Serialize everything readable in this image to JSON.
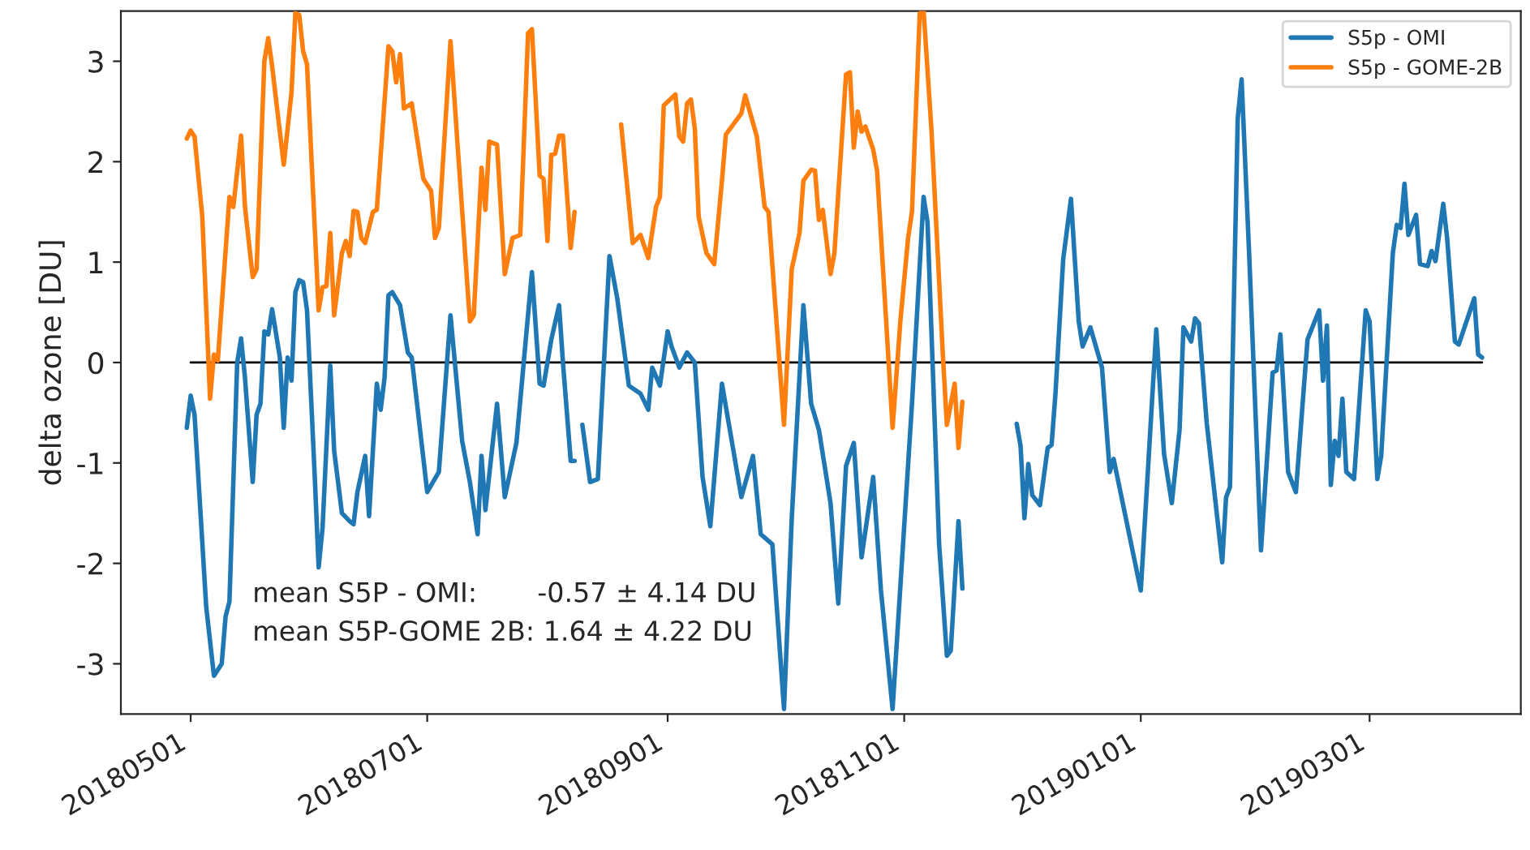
{
  "chart_data": {
    "type": "line",
    "ylabel": "delta ozone [DU]",
    "xlim": [
      "2018-04-13",
      "2019-04-09"
    ],
    "ylim": [
      -3.5,
      3.5
    ],
    "yticks": [
      -3,
      -2,
      -1,
      0,
      1,
      2,
      3
    ],
    "xticks": [
      {
        "value": "2018-05-01",
        "label": "20180501"
      },
      {
        "value": "2018-07-01",
        "label": "20180701"
      },
      {
        "value": "2018-09-01",
        "label": "20180901"
      },
      {
        "value": "2018-11-01",
        "label": "20181101"
      },
      {
        "value": "2019-01-01",
        "label": "20190101"
      },
      {
        "value": "2019-03-01",
        "label": "20190301"
      }
    ],
    "grid": false,
    "legend": "top right",
    "marker": "none",
    "line_style": "solid",
    "annotations": [
      "mean S5P - OMI:       -0.57 ± 4.14 DU",
      "mean S5P-GOME 2B: 1.64 ± 4.22 DU"
    ],
    "series": [
      {
        "name": "S5p - OMI",
        "color": "#1f77b4",
        "x": [
          "2018-04-30",
          "2018-05-01",
          "2018-05-02",
          "2018-05-05",
          "2018-05-07",
          "2018-05-09",
          "2018-05-10",
          "2018-05-11",
          "2018-05-13",
          "2018-05-14",
          "2018-05-15",
          "2018-05-17",
          "2018-05-18",
          "2018-05-19",
          "2018-05-20",
          "2018-05-21",
          "2018-05-22",
          "2018-05-24",
          "2018-05-25",
          "2018-05-26",
          "2018-05-27",
          "2018-05-28",
          "2018-05-29",
          "2018-05-30",
          "2018-05-31",
          "2018-06-02",
          "2018-06-03",
          "2018-06-04",
          "2018-06-06",
          "2018-06-07",
          "2018-06-09",
          "2018-06-11",
          "2018-06-12",
          "2018-06-13",
          "2018-06-15",
          "2018-06-16",
          "2018-06-18",
          "2018-06-19",
          "2018-06-20",
          "2018-06-21",
          "2018-06-22",
          "2018-06-24",
          "2018-06-26",
          "2018-06-27",
          "2018-07-01",
          "2018-07-04",
          "2018-07-07",
          "2018-07-10",
          "2018-07-12",
          "2018-07-14",
          "2018-07-15",
          "2018-07-16",
          "2018-07-19",
          "2018-07-21",
          "2018-07-24",
          "2018-07-28",
          "2018-07-30",
          "2018-07-31",
          "2018-08-02",
          "2018-08-04",
          "2018-08-05",
          "2018-08-07",
          "2018-08-08",
          "2018-08-09",
          "2018-08-10",
          "2018-08-12",
          "2018-08-14",
          "2018-08-17",
          "2018-08-19",
          "2018-08-22",
          "2018-08-25",
          "2018-08-27",
          "2018-08-28",
          "2018-08-30",
          "2018-09-01",
          "2018-09-02",
          "2018-09-04",
          "2018-09-06",
          "2018-09-08",
          "2018-09-10",
          "2018-09-12",
          "2018-09-15",
          "2018-09-20",
          "2018-09-23",
          "2018-09-25",
          "2018-09-28",
          "2018-10-01",
          "2018-10-03",
          "2018-10-06",
          "2018-10-08",
          "2018-10-10",
          "2018-10-13",
          "2018-10-15",
          "2018-10-17",
          "2018-10-19",
          "2018-10-21",
          "2018-10-24",
          "2018-10-26",
          "2018-10-29",
          "2018-11-03",
          "2018-11-06",
          "2018-11-07",
          "2018-11-10",
          "2018-11-12",
          "2018-11-13",
          "2018-11-15",
          "2018-11-16",
          "2018-11-17",
          "2018-11-30",
          "2018-12-01",
          "2018-12-02",
          "2018-12-03",
          "2018-12-04",
          "2018-12-06",
          "2018-12-08",
          "2018-12-09",
          "2018-12-10",
          "2018-12-12",
          "2018-12-14",
          "2018-12-16",
          "2018-12-17",
          "2018-12-19",
          "2018-12-22",
          "2018-12-24",
          "2018-12-25",
          "2019-01-01",
          "2019-01-05",
          "2019-01-07",
          "2019-01-09",
          "2019-01-11",
          "2019-01-12",
          "2019-01-14",
          "2019-01-15",
          "2019-01-16",
          "2019-01-18",
          "2019-01-22",
          "2019-01-23",
          "2019-01-24",
          "2019-01-26",
          "2019-01-27",
          "2019-01-29",
          "2019-02-01",
          "2019-02-04",
          "2019-02-05",
          "2019-02-06",
          "2019-02-08",
          "2019-02-10",
          "2019-02-13",
          "2019-02-16",
          "2019-02-17",
          "2019-02-18",
          "2019-02-19",
          "2019-02-20",
          "2019-02-21",
          "2019-02-22",
          "2019-02-23",
          "2019-02-25",
          "2019-02-28",
          "2019-03-01",
          "2019-03-03",
          "2019-03-04",
          "2019-03-07",
          "2019-03-08",
          "2019-03-09",
          "2019-03-10",
          "2019-03-11",
          "2019-03-13",
          "2019-03-14",
          "2019-03-16",
          "2019-03-17",
          "2019-03-18",
          "2019-03-20",
          "2019-03-21",
          "2019-03-23",
          "2019-03-24",
          "2019-03-28",
          "2019-03-29",
          "2019-03-30"
        ],
        "values": [
          -0.65,
          -0.33,
          -0.52,
          -2.43,
          -3.12,
          -3.0,
          -2.53,
          -2.38,
          0.0,
          0.24,
          -0.15,
          -1.19,
          -0.52,
          -0.41,
          0.31,
          0.28,
          0.53,
          0.05,
          -0.65,
          0.05,
          -0.18,
          0.7,
          0.82,
          0.8,
          0.52,
          -1.14,
          -2.04,
          -1.65,
          -0.03,
          -0.88,
          -1.5,
          -1.58,
          -1.61,
          -1.29,
          -0.93,
          -1.53,
          -0.21,
          -0.47,
          -0.15,
          0.67,
          0.7,
          0.57,
          0.1,
          0.05,
          -1.29,
          -1.09,
          0.47,
          -0.78,
          -1.19,
          -1.71,
          -0.93,
          -1.47,
          -0.41,
          -1.34,
          -0.8,
          0.9,
          -0.21,
          -0.23,
          0.23,
          0.57,
          0.0,
          -0.98,
          -0.98,
          null,
          -0.62,
          -1.19,
          -1.16,
          1.06,
          0.64,
          -0.23,
          -0.31,
          -0.47,
          -0.05,
          -0.23,
          0.31,
          0.16,
          -0.05,
          0.1,
          0.0,
          -1.14,
          -1.63,
          -0.21,
          -1.34,
          -0.93,
          -1.71,
          -1.81,
          -3.45,
          -1.55,
          0.57,
          -0.41,
          -0.67,
          -1.4,
          -2.4,
          -1.03,
          -0.8,
          -1.94,
          -1.14,
          -2.27,
          -3.45,
          -0.41,
          1.65,
          1.4,
          -1.81,
          -2.92,
          -2.87,
          -1.58,
          -2.25,
          null,
          -0.61,
          -0.83,
          -1.55,
          -1.01,
          -1.32,
          -1.42,
          -0.85,
          -0.82,
          -0.31,
          1.03,
          1.63,
          0.41,
          0.16,
          0.35,
          -0.05,
          -1.09,
          -0.96,
          -2.27,
          0.33,
          -0.91,
          -1.4,
          -0.67,
          0.35,
          0.21,
          0.44,
          0.39,
          -0.6,
          -1.99,
          -1.34,
          -1.24,
          2.43,
          2.82,
          1.03,
          -1.87,
          -0.1,
          -0.08,
          0.28,
          -1.09,
          -1.29,
          0.23,
          0.52,
          -0.18,
          0.37,
          -1.22,
          -0.78,
          -0.93,
          -0.36,
          -1.09,
          -1.16,
          0.52,
          0.41,
          -1.16,
          -0.93,
          1.09,
          1.37,
          1.34,
          1.78,
          1.27,
          1.47,
          0.98,
          0.96,
          1.11,
          1.01,
          1.58,
          1.24,
          0.21,
          0.18,
          0.64,
          0.08,
          0.05
        ]
      },
      {
        "name": "S5p - GOME-2B",
        "color": "#ff7f0e",
        "x": [
          "2018-04-30",
          "2018-05-01",
          "2018-05-02",
          "2018-05-04",
          "2018-05-06",
          "2018-05-07",
          "2018-05-08",
          "2018-05-11",
          "2018-05-12",
          "2018-05-14",
          "2018-05-15",
          "2018-05-17",
          "2018-05-18",
          "2018-05-20",
          "2018-05-21",
          "2018-05-22",
          "2018-05-25",
          "2018-05-27",
          "2018-05-28",
          "2018-05-29",
          "2018-05-30",
          "2018-05-31",
          "2018-06-03",
          "2018-06-04",
          "2018-06-05",
          "2018-06-06",
          "2018-06-07",
          "2018-06-09",
          "2018-06-10",
          "2018-06-11",
          "2018-06-12",
          "2018-06-13",
          "2018-06-14",
          "2018-06-15",
          "2018-06-17",
          "2018-06-18",
          "2018-06-21",
          "2018-06-22",
          "2018-06-23",
          "2018-06-24",
          "2018-06-25",
          "2018-06-27",
          "2018-06-30",
          "2018-07-02",
          "2018-07-03",
          "2018-07-04",
          "2018-07-07",
          "2018-07-09",
          "2018-07-12",
          "2018-07-13",
          "2018-07-15",
          "2018-07-16",
          "2018-07-17",
          "2018-07-19",
          "2018-07-21",
          "2018-07-23",
          "2018-07-25",
          "2018-07-27",
          "2018-07-28",
          "2018-07-30",
          "2018-07-31",
          "2018-08-01",
          "2018-08-02",
          "2018-08-03",
          "2018-08-04",
          "2018-08-05",
          "2018-08-07",
          "2018-08-08",
          "2018-08-09",
          "2018-08-20",
          "2018-08-23",
          "2018-08-25",
          "2018-08-27",
          "2018-08-29",
          "2018-08-30",
          "2018-08-31",
          "2018-09-03",
          "2018-09-04",
          "2018-09-05",
          "2018-09-06",
          "2018-09-07",
          "2018-09-08",
          "2018-09-09",
          "2018-09-11",
          "2018-09-13",
          "2018-09-15",
          "2018-09-16",
          "2018-09-20",
          "2018-09-21",
          "2018-09-24",
          "2018-09-26",
          "2018-09-27",
          "2018-10-01",
          "2018-10-03",
          "2018-10-05",
          "2018-10-06",
          "2018-10-08",
          "2018-10-09",
          "2018-10-10",
          "2018-10-11",
          "2018-10-13",
          "2018-10-14",
          "2018-10-17",
          "2018-10-18",
          "2018-10-19",
          "2018-10-20",
          "2018-10-21",
          "2018-10-22",
          "2018-10-24",
          "2018-10-25",
          "2018-10-29",
          "2018-10-31",
          "2018-11-02",
          "2018-11-03",
          "2018-11-05",
          "2018-11-06",
          "2018-11-08",
          "2018-11-11",
          "2018-11-12",
          "2018-11-14",
          "2018-11-15",
          "2018-11-16"
        ],
        "values": [
          2.23,
          2.31,
          2.25,
          1.45,
          -0.36,
          0.08,
          0.02,
          1.65,
          1.55,
          2.26,
          1.55,
          0.85,
          0.93,
          3.0,
          3.23,
          2.95,
          1.97,
          2.69,
          3.48,
          3.46,
          3.1,
          2.97,
          0.52,
          0.75,
          0.76,
          1.29,
          0.47,
          1.09,
          1.21,
          1.06,
          1.51,
          1.5,
          1.24,
          1.19,
          1.5,
          1.52,
          3.15,
          3.1,
          2.79,
          3.07,
          2.53,
          2.58,
          1.83,
          1.71,
          1.24,
          1.34,
          3.2,
          2.07,
          0.41,
          0.47,
          1.94,
          1.52,
          2.2,
          2.17,
          0.88,
          1.24,
          1.27,
          3.28,
          3.32,
          1.86,
          1.83,
          1.21,
          2.07,
          2.08,
          2.26,
          2.26,
          1.14,
          1.5,
          null,
          2.37,
          1.19,
          1.27,
          1.04,
          1.55,
          1.65,
          2.56,
          2.67,
          2.25,
          2.2,
          2.58,
          2.62,
          2.33,
          1.45,
          1.09,
          0.98,
          1.81,
          2.27,
          2.48,
          2.66,
          2.25,
          1.55,
          1.5,
          -0.62,
          0.93,
          1.29,
          1.81,
          1.92,
          1.91,
          1.42,
          1.52,
          0.88,
          1.09,
          2.87,
          2.89,
          2.14,
          2.5,
          2.3,
          2.35,
          2.12,
          1.91,
          -0.65,
          0.41,
          1.24,
          1.5,
          3.48,
          3.5,
          2.33,
          0.05,
          -0.62,
          -0.21,
          -0.85,
          -0.39
        ]
      },
      {
        "type": "line",
        "color": "#000000",
        "x": [
          "2018-05-01",
          "2019-03-30"
        ],
        "values": [
          0,
          0
        ]
      }
    ]
  }
}
